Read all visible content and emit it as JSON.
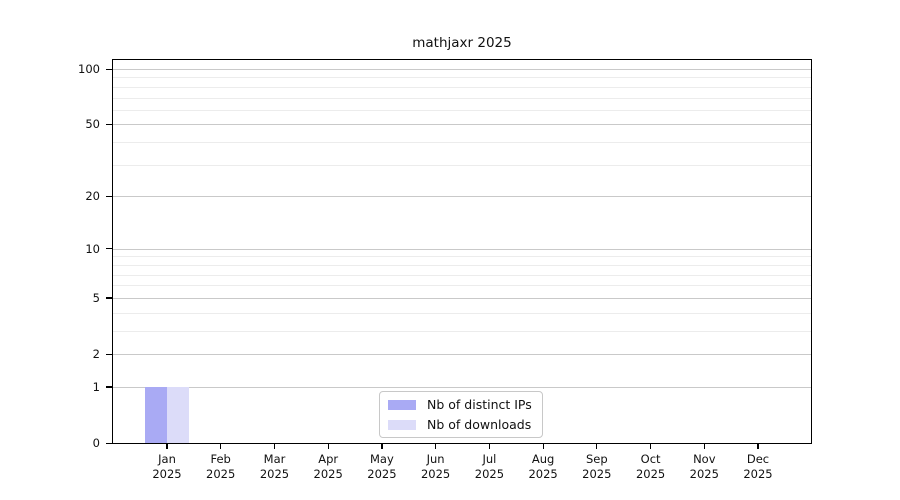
{
  "chart_data": {
    "type": "bar",
    "title": "mathjaxr 2025",
    "categories": [
      "Jan 2025",
      "Feb 2025",
      "Mar 2025",
      "Apr 2025",
      "May 2025",
      "Jun 2025",
      "Jul 2025",
      "Aug 2025",
      "Sep 2025",
      "Oct 2025",
      "Nov 2025",
      "Dec 2025"
    ],
    "series": [
      {
        "name": "Nb of distinct IPs",
        "color": "#a9aaf4",
        "values": [
          1,
          0,
          0,
          0,
          0,
          0,
          0,
          0,
          0,
          0,
          0,
          0
        ]
      },
      {
        "name": "Nb of downloads",
        "color": "#dcdcf9",
        "values": [
          1,
          0,
          0,
          0,
          0,
          0,
          0,
          0,
          0,
          0,
          0,
          0
        ]
      }
    ],
    "xlabel": "",
    "ylabel": "",
    "yscale": "log1p",
    "ylim": [
      0,
      112
    ],
    "yticks": [
      0,
      1,
      2,
      5,
      10,
      20,
      50,
      100
    ],
    "minor_gridline_values": [
      3,
      4,
      6,
      7,
      8,
      9,
      30,
      40,
      60,
      70,
      80,
      90
    ],
    "grid": "horizontal",
    "legend_position": "inside-bottom-center",
    "colors": {
      "major_grid": "#c9c9c9",
      "minor_grid": "#ececec",
      "frame": "#000000",
      "background": "#ffffff"
    }
  }
}
